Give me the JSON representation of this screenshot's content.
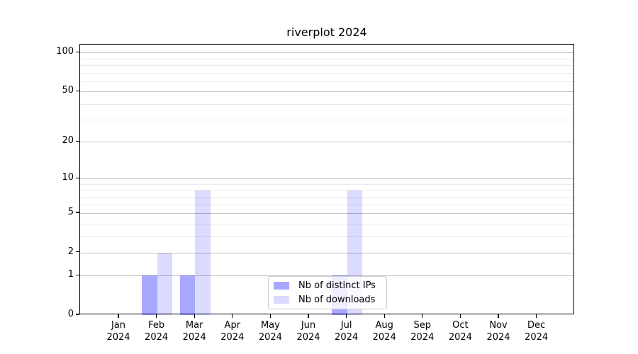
{
  "chart_data": {
    "type": "bar",
    "title": "riverplot 2024",
    "xlabel": "",
    "ylabel": "",
    "x_tick_labels": [
      {
        "line1": "Jan",
        "line2": "2024"
      },
      {
        "line1": "Feb",
        "line2": "2024"
      },
      {
        "line1": "Mar",
        "line2": "2024"
      },
      {
        "line1": "Apr",
        "line2": "2024"
      },
      {
        "line1": "May",
        "line2": "2024"
      },
      {
        "line1": "Jun",
        "line2": "2024"
      },
      {
        "line1": "Jul",
        "line2": "2024"
      },
      {
        "line1": "Aug",
        "line2": "2024"
      },
      {
        "line1": "Sep",
        "line2": "2024"
      },
      {
        "line1": "Oct",
        "line2": "2024"
      },
      {
        "line1": "Nov",
        "line2": "2024"
      },
      {
        "line1": "Dec",
        "line2": "2024"
      }
    ],
    "series": [
      {
        "name": "Nb of distinct IPs",
        "color": "rgba(0,0,255,0.34)",
        "values": [
          0,
          1,
          1,
          0,
          0,
          0,
          1,
          0,
          0,
          0,
          0,
          0
        ]
      },
      {
        "name": "Nb of downloads",
        "color": "rgba(0,0,255,0.14)",
        "values": [
          0,
          2,
          8,
          0,
          0,
          0,
          8,
          0,
          0,
          0,
          0,
          0
        ]
      }
    ],
    "y_scale": "log1p",
    "y_major_ticks": [
      0,
      1,
      2,
      5,
      10,
      20,
      50,
      100
    ],
    "y_minor_ticks": [
      3,
      4,
      6,
      7,
      8,
      9,
      30,
      40,
      60,
      70,
      80,
      90
    ],
    "ylim": [
      0,
      114
    ],
    "grid": {
      "orientation": "horizontal",
      "major_color": "#c3c3c3",
      "minor_color": "#eaeaea"
    },
    "legend": {
      "position": "lower center",
      "border_color": "#cccccc"
    }
  }
}
